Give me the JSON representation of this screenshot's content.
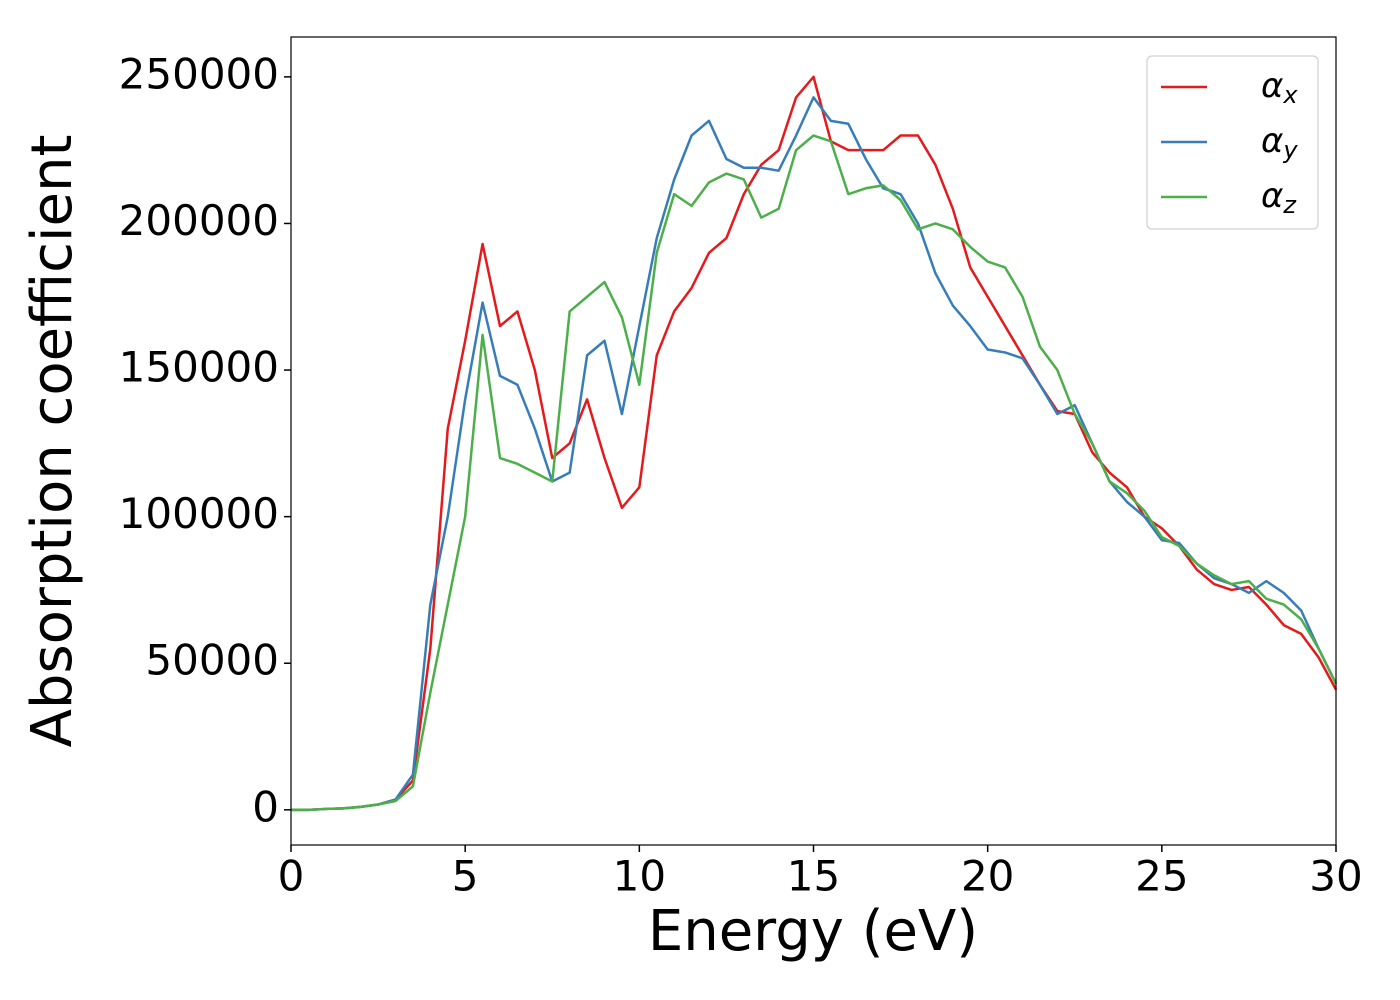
{
  "chart_data": {
    "type": "line",
    "xlabel": "Energy (eV)",
    "ylabel": "Absorption coefficient",
    "x": [
      0,
      0.5,
      1,
      1.5,
      2,
      2.5,
      3,
      3.5,
      4,
      4.5,
      5,
      5.5,
      6,
      6.5,
      7,
      7.5,
      8,
      8.5,
      9,
      9.5,
      10,
      10.5,
      11,
      11.5,
      12,
      12.5,
      13,
      13.5,
      14,
      14.5,
      15,
      15.5,
      16,
      16.5,
      17,
      17.5,
      18,
      18.5,
      19,
      19.5,
      20,
      20.5,
      21,
      21.5,
      22,
      22.5,
      23,
      23.5,
      24,
      24.5,
      25,
      25.5,
      26,
      26.5,
      27,
      27.5,
      28,
      28.5,
      29,
      29.5,
      30
    ],
    "series": [
      {
        "name": "αx",
        "color": "#e41a1c",
        "values": [
          0,
          0,
          300,
          500,
          1000,
          1800,
          3500,
          10000,
          55000,
          130000,
          160000,
          193000,
          165000,
          170000,
          150000,
          120000,
          125000,
          140000,
          120000,
          103000,
          110000,
          155000,
          170000,
          178000,
          190000,
          195000,
          210000,
          220000,
          225000,
          243000,
          250000,
          228000,
          225000,
          225000,
          225000,
          230000,
          230000,
          220000,
          205000,
          185000,
          175000,
          165000,
          155000,
          145000,
          136000,
          135000,
          122000,
          115000,
          110000,
          100000,
          96000,
          90000,
          82000,
          77000,
          75000,
          76000,
          70000,
          63000,
          60000,
          52000,
          41000
        ]
      },
      {
        "name": "αy",
        "color": "#377eb8",
        "values": [
          0,
          0,
          300,
          500,
          1000,
          1800,
          3500,
          12000,
          70000,
          100000,
          140000,
          173000,
          148000,
          145000,
          130000,
          112000,
          115000,
          155000,
          160000,
          135000,
          165000,
          195000,
          215000,
          230000,
          235000,
          222000,
          219000,
          219000,
          218000,
          230000,
          243000,
          235000,
          234000,
          222000,
          212000,
          210000,
          200000,
          183000,
          172000,
          165000,
          157000,
          156000,
          154000,
          145000,
          135000,
          138000,
          125000,
          112000,
          105000,
          100000,
          92000,
          91000,
          84000,
          79000,
          77000,
          74000,
          78000,
          74000,
          68000,
          55000,
          43000
        ]
      },
      {
        "name": "αz",
        "color": "#4daf4a",
        "values": [
          0,
          0,
          300,
          500,
          1000,
          1800,
          3000,
          8000,
          40000,
          70000,
          100000,
          162000,
          120000,
          118000,
          115000,
          112000,
          170000,
          175000,
          180000,
          168000,
          145000,
          190000,
          210000,
          206000,
          214000,
          217000,
          215000,
          202000,
          205000,
          225000,
          230000,
          228000,
          210000,
          212000,
          213000,
          208000,
          198000,
          200000,
          198000,
          192000,
          187000,
          185000,
          175000,
          158000,
          150000,
          135000,
          125000,
          112000,
          108000,
          102000,
          93000,
          90000,
          84000,
          80000,
          77000,
          78000,
          72000,
          70000,
          65000,
          55000,
          43000
        ]
      }
    ],
    "xlim": [
      0,
      30
    ],
    "xticks": [
      0,
      5,
      10,
      15,
      20,
      25,
      30
    ],
    "ylim": [
      -12000,
      263600
    ],
    "yticks": [
      0,
      50000,
      100000,
      150000,
      200000,
      250000
    ],
    "legend": "upper right"
  }
}
